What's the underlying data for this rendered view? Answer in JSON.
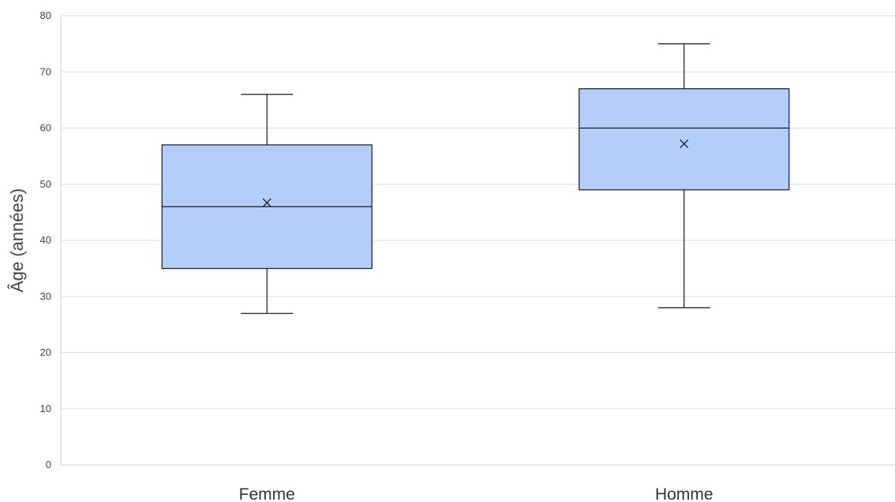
{
  "chart_data": {
    "type": "boxplot",
    "ylabel": "Âge (années)",
    "xlabel": "",
    "ylim": [
      0,
      80
    ],
    "yticks": [
      0,
      10,
      20,
      30,
      40,
      50,
      60,
      70,
      80
    ],
    "grid": true,
    "categories": [
      "Femme",
      "Homme"
    ],
    "boxes": [
      {
        "category": "Femme",
        "whisker_low": 27,
        "q1": 35,
        "median": 46,
        "q3": 57,
        "whisker_high": 66,
        "mean": 46.7
      },
      {
        "category": "Homme",
        "whisker_low": 28,
        "q1": 49,
        "median": 60,
        "q3": 67,
        "whisker_high": 75,
        "mean": 57.2
      }
    ],
    "colors": {
      "box_fill": "#b3cefa",
      "box_stroke": "#1a1a1a",
      "grid": "#dddddd",
      "axis": "#cccccc"
    }
  }
}
